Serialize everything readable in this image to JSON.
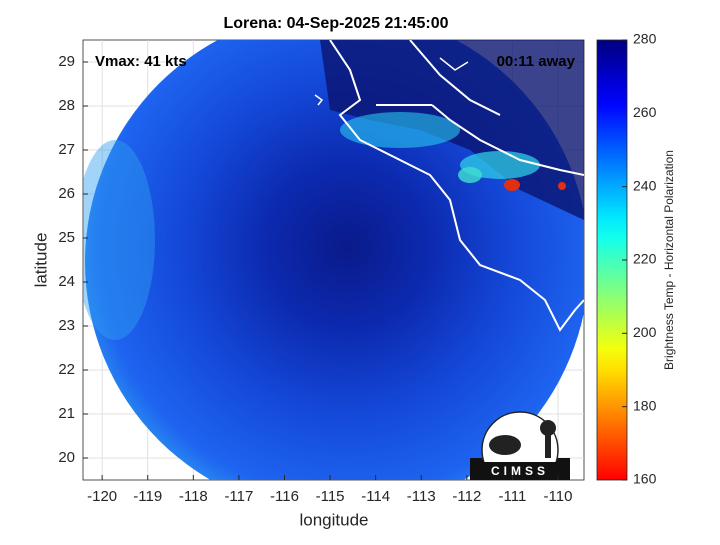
{
  "chart_data": {
    "type": "map",
    "title": "Lorena: 04-Sep-2025 21:45:00",
    "annotations": [
      "Vmax: 41 kts",
      "00:11 away"
    ],
    "x_label": "longitude",
    "y_label": "latitude",
    "xlim": [
      -120.42,
      -109.43
    ],
    "xticks": [
      -120,
      -119,
      -118,
      -117,
      -116,
      -115,
      -114,
      -113,
      -112,
      -111,
      -110
    ],
    "ylim": [
      19.5,
      29.5
    ],
    "yticks": [
      20,
      21,
      22,
      23,
      24,
      25,
      26,
      27,
      28,
      29
    ],
    "grid": true,
    "colorbar": {
      "label": "Brightness Temp - Horizontal Polarization",
      "colormap": "jet",
      "clim": [
        160,
        280
      ],
      "ticks": [
        160,
        180,
        200,
        220,
        240,
        260,
        280
      ]
    },
    "logo_text": "CIMSS"
  }
}
